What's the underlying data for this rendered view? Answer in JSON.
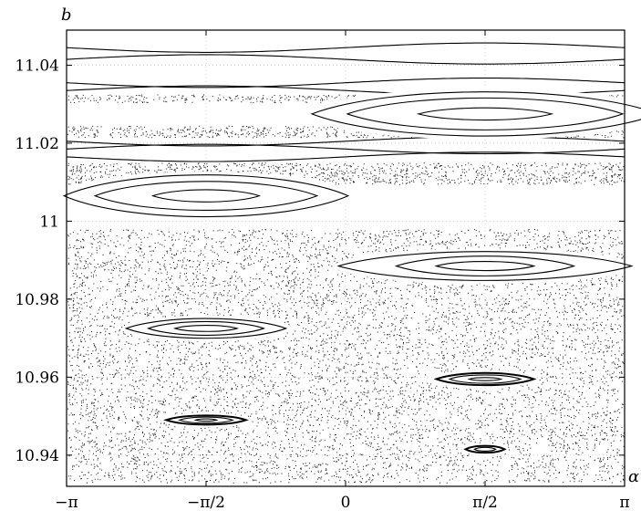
{
  "chart_data": {
    "type": "scatter",
    "title": "",
    "xlabel": "α",
    "ylabel": "b",
    "xlim": [
      -3.14159,
      3.14159
    ],
    "ylim": [
      10.932,
      11.049
    ],
    "grid": true,
    "x_ticks": [
      {
        "value": -3.14159,
        "label": "−π"
      },
      {
        "value": -1.5708,
        "label": "−π/2"
      },
      {
        "value": 0,
        "label": "0"
      },
      {
        "value": 1.5708,
        "label": "π/2"
      },
      {
        "value": 3.14159,
        "label": "π"
      }
    ],
    "y_ticks": [
      {
        "value": 10.94,
        "label": "10.94"
      },
      {
        "value": 10.96,
        "label": "10.96"
      },
      {
        "value": 10.98,
        "label": "10.98"
      },
      {
        "value": 11.0,
        "label": "11"
      },
      {
        "value": 11.02,
        "label": "11.02"
      },
      {
        "value": 11.04,
        "label": "11.04"
      }
    ],
    "invariant_curves": [
      11.0445,
      11.0415,
      11.0355,
      11.0335,
      11.0205,
      11.0185,
      11.0165
    ],
    "islands": [
      {
        "center": [
          1.5708,
          11.0275
        ],
        "rx": [
          1.95,
          1.55,
          0.75
        ],
        "ry": [
          0.0058,
          0.0042,
          0.0016
        ]
      },
      {
        "center": [
          -1.5708,
          11.0065
        ],
        "rx": [
          1.6,
          1.25,
          0.6
        ],
        "ry": [
          0.0055,
          0.0038,
          0.0016
        ]
      },
      {
        "center": [
          1.5708,
          10.9885
        ],
        "rx": [
          1.65,
          1.0,
          0.55
        ],
        "ry": [
          0.0038,
          0.0026,
          0.0012
        ]
      },
      {
        "center": [
          -1.5708,
          10.9725
        ],
        "rx": [
          0.9,
          0.65,
          0.35
        ],
        "ry": [
          0.0026,
          0.0018,
          0.0008
        ]
      },
      {
        "center": [
          1.5708,
          10.9595
        ],
        "rx": [
          0.55,
          0.4,
          0.18
        ],
        "ry": [
          0.0016,
          0.0011,
          0.0004
        ]
      },
      {
        "center": [
          -1.5708,
          10.949
        ],
        "rx": [
          0.45,
          0.3,
          0.12
        ],
        "ry": [
          0.0012,
          0.0008,
          0.0003
        ]
      },
      {
        "center": [
          1.5708,
          10.9415
        ],
        "rx": [
          0.22,
          0.12
        ],
        "ry": [
          0.0009,
          0.0005
        ]
      }
    ],
    "chaotic_bands": [
      [
        10.933,
        10.998
      ],
      [
        11.0095,
        11.015
      ],
      [
        11.0215,
        11.0245
      ],
      [
        11.0305,
        11.0325
      ]
    ]
  }
}
